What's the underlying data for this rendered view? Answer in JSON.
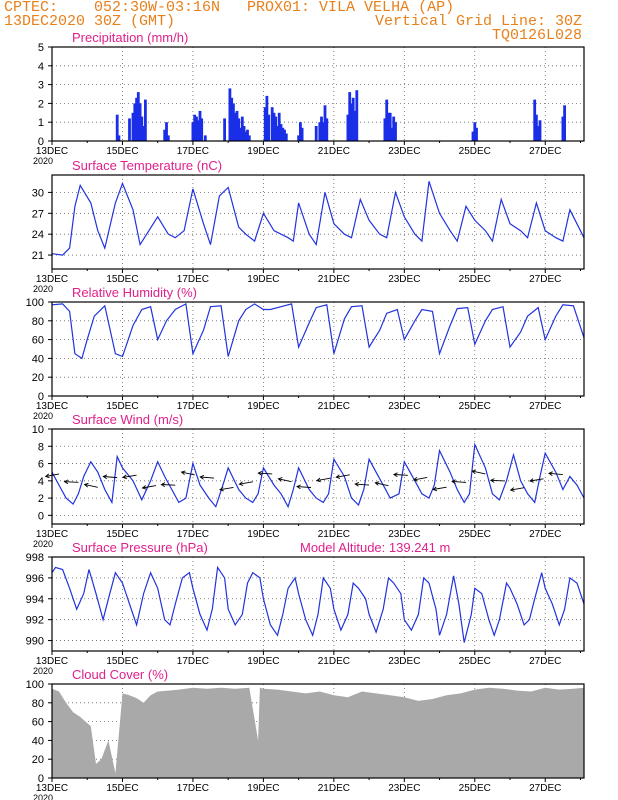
{
  "header": {
    "line1": "CPTEC:    052:30W-03:16N   PROX01: VILA VELHA (AP)",
    "line2_left": "13DEC2020 30Z (GMT)",
    "line2_right": "Vertical Grid Line: 30Z",
    "code": "TQ0126L028"
  },
  "colors": {
    "header": "#e8801c",
    "title": "#e0208c",
    "line": "#2233dd",
    "bar": "#1a2ee8",
    "cloud": "#a9a9a9",
    "arrow": "#000000",
    "grid": "#666666"
  },
  "x_tick_labels": [
    "13DEC",
    "15DEC",
    "17DEC",
    "19DEC",
    "21DEC",
    "23DEC",
    "25DEC",
    "27DEC"
  ],
  "year_label": "2020",
  "chart_data": [
    {
      "type": "bar",
      "title": "Precipitation (mm/h)",
      "x_range_days": [
        13,
        28.1
      ],
      "ylim": [
        0,
        5
      ],
      "yticks": [
        0,
        1,
        2,
        3,
        4,
        5
      ],
      "x": [
        14.85,
        14.9,
        15.2,
        15.3,
        15.35,
        15.4,
        15.45,
        15.5,
        15.55,
        15.6,
        15.65,
        16.2,
        16.25,
        16.3,
        17.0,
        17.05,
        17.1,
        17.15,
        17.2,
        17.25,
        17.35,
        17.9,
        18.05,
        18.1,
        18.15,
        18.2,
        18.25,
        18.3,
        18.35,
        18.4,
        18.45,
        18.5,
        18.55,
        18.6,
        19.05,
        19.1,
        19.15,
        19.25,
        19.3,
        19.35,
        19.4,
        19.45,
        19.5,
        19.55,
        19.6,
        19.65,
        20.0,
        20.05,
        20.1,
        20.5,
        20.6,
        20.65,
        20.7,
        20.75,
        20.8,
        21.4,
        21.45,
        21.5,
        21.55,
        21.6,
        21.65,
        22.45,
        22.5,
        22.55,
        22.6,
        22.65,
        22.7,
        22.75,
        24.95,
        25.0,
        25.05,
        26.7,
        26.75,
        26.8,
        26.85,
        27.5,
        27.55
      ],
      "values": [
        1.4,
        0.3,
        1.2,
        1.5,
        2.0,
        2.3,
        2.6,
        2.0,
        1.3,
        0.8,
        2.2,
        0.6,
        1.0,
        0.3,
        1.0,
        1.4,
        1.3,
        1.1,
        1.6,
        1.2,
        0.3,
        1.2,
        2.8,
        2.3,
        2.0,
        1.5,
        1.6,
        1.2,
        0.7,
        1.3,
        0.8,
        0.5,
        0.6,
        0.3,
        1.8,
        2.4,
        1.4,
        1.8,
        1.5,
        1.3,
        0.8,
        1.5,
        0.9,
        0.7,
        0.6,
        0.4,
        0.3,
        1.0,
        0.7,
        0.8,
        1.0,
        1.3,
        1.0,
        1.9,
        1.2,
        1.4,
        2.6,
        2.0,
        2.3,
        1.6,
        2.7,
        1.2,
        2.2,
        1.5,
        1.5,
        0.7,
        1.3,
        1.0,
        0.5,
        1.0,
        0.7,
        2.2,
        1.4,
        0.8,
        1.1,
        1.3,
        1.9
      ]
    },
    {
      "type": "line",
      "title": "Surface Temperature (nC)",
      "ylim": [
        19,
        32.5
      ],
      "yticks": [
        21,
        24,
        27,
        30
      ],
      "x": [
        13.0,
        13.3,
        13.5,
        13.65,
        13.8,
        14.1,
        14.3,
        14.5,
        14.8,
        15.0,
        15.3,
        15.5,
        15.75,
        16.0,
        16.3,
        16.5,
        16.75,
        17.0,
        17.3,
        17.5,
        17.75,
        18.0,
        18.3,
        18.5,
        18.75,
        19.0,
        19.3,
        19.7,
        19.85,
        20.0,
        20.3,
        20.5,
        20.75,
        21.0,
        21.3,
        21.5,
        21.75,
        22.0,
        22.3,
        22.5,
        22.75,
        23.0,
        23.3,
        23.5,
        23.7,
        24.0,
        24.3,
        24.5,
        24.75,
        25.0,
        25.3,
        25.5,
        25.75,
        26.0,
        26.3,
        26.5,
        26.75,
        27.0,
        27.3,
        27.5,
        27.7,
        28.1
      ],
      "values": [
        21.2,
        21.0,
        22.0,
        28.0,
        31.0,
        28.5,
        24.5,
        22.0,
        28.5,
        31.3,
        27.5,
        22.5,
        24.5,
        26.5,
        24.0,
        23.5,
        24.5,
        30.5,
        25.5,
        22.5,
        29.5,
        30.7,
        25.0,
        24.0,
        23.0,
        27.0,
        24.5,
        23.5,
        23.0,
        28.5,
        24.0,
        22.5,
        30.0,
        25.5,
        24.0,
        23.5,
        29.0,
        26.0,
        24.0,
        23.5,
        30.0,
        26.5,
        24.0,
        23.0,
        31.6,
        27.0,
        24.5,
        23.0,
        28.0,
        26.0,
        24.5,
        23.0,
        29.0,
        25.5,
        24.5,
        23.5,
        28.5,
        24.5,
        23.5,
        23.0,
        27.5,
        23.5
      ]
    },
    {
      "type": "line",
      "title": "Relative Humidity (%)",
      "ylim": [
        0,
        100
      ],
      "yticks": [
        0,
        20,
        40,
        60,
        80,
        100
      ],
      "x": [
        13.0,
        13.3,
        13.5,
        13.65,
        13.85,
        14.0,
        14.2,
        14.5,
        14.8,
        15.0,
        15.3,
        15.55,
        15.8,
        16.0,
        16.25,
        16.5,
        16.8,
        17.0,
        17.3,
        17.5,
        17.8,
        18.0,
        18.3,
        18.5,
        18.75,
        19.0,
        19.2,
        19.5,
        19.8,
        20.0,
        20.3,
        20.5,
        20.8,
        21.0,
        21.3,
        21.5,
        21.8,
        22.0,
        22.3,
        22.5,
        22.8,
        23.0,
        23.3,
        23.5,
        23.8,
        24.0,
        24.3,
        24.5,
        24.8,
        25.0,
        25.3,
        25.5,
        25.8,
        26.0,
        26.3,
        26.5,
        26.8,
        27.0,
        27.3,
        27.5,
        27.8,
        28.1
      ],
      "values": [
        97,
        98,
        90,
        45,
        40,
        60,
        85,
        96,
        45,
        42,
        75,
        92,
        95,
        60,
        80,
        92,
        98,
        45,
        70,
        95,
        96,
        42,
        80,
        92,
        98,
        92,
        92,
        95,
        98,
        52,
        78,
        94,
        97,
        45,
        82,
        95,
        96,
        52,
        70,
        88,
        92,
        60,
        80,
        92,
        90,
        45,
        75,
        93,
        94,
        55,
        80,
        92,
        95,
        52,
        68,
        85,
        94,
        60,
        85,
        97,
        96,
        62
      ]
    },
    {
      "type": "line",
      "title": "Surface Wind (m/s)",
      "ylim": [
        -1,
        10
      ],
      "yticks": [
        0,
        2,
        4,
        6,
        8,
        10
      ],
      "x": [
        13.0,
        13.2,
        13.4,
        13.6,
        13.75,
        13.9,
        14.1,
        14.3,
        14.5,
        14.7,
        14.85,
        15.0,
        15.3,
        15.55,
        15.8,
        16.0,
        16.2,
        16.4,
        16.6,
        16.8,
        17.0,
        17.2,
        17.45,
        17.65,
        17.85,
        18.0,
        18.3,
        18.5,
        18.7,
        18.85,
        19.0,
        19.3,
        19.5,
        19.7,
        19.85,
        20.0,
        20.3,
        20.5,
        20.7,
        20.85,
        21.0,
        21.3,
        21.5,
        21.7,
        21.85,
        22.0,
        22.2,
        22.4,
        22.6,
        22.85,
        23.0,
        23.3,
        23.5,
        23.7,
        23.85,
        24.0,
        24.3,
        24.5,
        24.7,
        24.85,
        25.0,
        25.3,
        25.5,
        25.7,
        25.9,
        26.1,
        26.3,
        26.5,
        26.7,
        26.85,
        27.0,
        27.3,
        27.5,
        27.7,
        27.9,
        28.1
      ],
      "values": [
        5.0,
        3.5,
        2.0,
        1.3,
        2.5,
        4.5,
        6.2,
        5.0,
        3.0,
        1.5,
        6.8,
        5.5,
        4.0,
        1.8,
        4.0,
        6.2,
        4.5,
        3.0,
        1.5,
        2.0,
        6.0,
        3.5,
        2.0,
        1.0,
        3.5,
        5.5,
        3.0,
        2.0,
        1.5,
        2.5,
        5.5,
        3.5,
        2.5,
        1.0,
        3.0,
        5.5,
        3.0,
        2.0,
        1.5,
        2.5,
        6.5,
        4.5,
        2.0,
        1.2,
        3.0,
        6.5,
        5.0,
        3.5,
        2.0,
        2.5,
        6.2,
        4.0,
        2.5,
        2.0,
        3.5,
        7.5,
        5.0,
        3.0,
        1.5,
        2.5,
        8.2,
        5.5,
        2.5,
        1.8,
        4.0,
        7.0,
        4.0,
        2.5,
        1.5,
        4.5,
        7.2,
        5.0,
        3.0,
        4.5,
        3.5,
        2.0
      ]
    },
    {
      "type": "line",
      "title": "Surface Pressure (hPa)",
      "annotation": "Model Altitude: 139.241 m",
      "ylim": [
        989,
        998
      ],
      "yticks": [
        990,
        992,
        994,
        996,
        998
      ],
      "x": [
        13.0,
        13.1,
        13.3,
        13.5,
        13.7,
        13.9,
        14.05,
        14.25,
        14.45,
        14.6,
        14.8,
        15.0,
        15.2,
        15.4,
        15.6,
        15.8,
        16.0,
        16.2,
        16.35,
        16.5,
        16.7,
        16.9,
        17.0,
        17.2,
        17.4,
        17.55,
        17.7,
        17.9,
        18.0,
        18.2,
        18.4,
        18.55,
        18.7,
        18.9,
        19.0,
        19.2,
        19.4,
        19.55,
        19.7,
        19.9,
        20.0,
        20.2,
        20.4,
        20.55,
        20.7,
        20.9,
        21.0,
        21.2,
        21.4,
        21.55,
        21.7,
        21.9,
        22.0,
        22.2,
        22.4,
        22.55,
        22.7,
        22.9,
        23.0,
        23.2,
        23.4,
        23.55,
        23.7,
        23.9,
        24.0,
        24.2,
        24.4,
        24.55,
        24.7,
        24.9,
        25.0,
        25.2,
        25.4,
        25.55,
        25.7,
        25.9,
        26.0,
        26.2,
        26.4,
        26.55,
        26.7,
        26.9,
        27.0,
        27.2,
        27.4,
        27.55,
        27.7,
        27.9,
        28.1
      ],
      "values": [
        996.5,
        997.0,
        996.8,
        995.0,
        993.0,
        994.5,
        996.8,
        994.5,
        992.0,
        994.0,
        996.5,
        995.5,
        993.5,
        991.5,
        994.5,
        996.5,
        995.0,
        992.0,
        991.5,
        993.5,
        996.0,
        996.5,
        995.0,
        992.5,
        991.0,
        993.0,
        997.0,
        996.0,
        993.0,
        991.5,
        992.5,
        995.5,
        996.5,
        996.0,
        994.0,
        991.5,
        990.5,
        992.5,
        995.0,
        996.0,
        994.5,
        992.0,
        990.5,
        992.5,
        996.0,
        995.0,
        993.0,
        991.0,
        992.5,
        995.5,
        995.0,
        994.0,
        992.5,
        990.8,
        993.0,
        996.0,
        995.5,
        994.5,
        992.0,
        991.0,
        992.5,
        996.0,
        995.5,
        993.0,
        990.5,
        992.5,
        996.2,
        993.5,
        989.8,
        992.5,
        995.0,
        994.5,
        992.0,
        990.5,
        992.0,
        995.5,
        995.0,
        993.5,
        991.5,
        992.0,
        994.0,
        996.5,
        995.0,
        993.5,
        991.5,
        993.0,
        996.0,
        995.5,
        993.5
      ]
    },
    {
      "type": "area",
      "title": "Cloud Cover (%)",
      "ylim": [
        0,
        100
      ],
      "yticks": [
        0,
        20,
        40,
        60,
        80,
        100
      ],
      "x": [
        13.0,
        13.2,
        13.4,
        13.6,
        13.8,
        13.95,
        14.1,
        14.25,
        14.4,
        14.6,
        14.8,
        15.0,
        15.2,
        15.4,
        15.6,
        15.8,
        16.0,
        16.3,
        16.6,
        17.0,
        17.4,
        17.8,
        18.2,
        18.6,
        18.85,
        18.9,
        19.0,
        19.4,
        19.8,
        20.2,
        20.6,
        21.0,
        21.4,
        21.8,
        22.2,
        22.6,
        23.0,
        23.4,
        23.8,
        24.2,
        24.6,
        25.0,
        25.4,
        25.8,
        26.2,
        26.6,
        27.0,
        27.4,
        27.8,
        28.1
      ],
      "values": [
        95,
        92,
        80,
        70,
        65,
        60,
        55,
        15,
        20,
        40,
        5,
        90,
        88,
        85,
        80,
        88,
        92,
        93,
        94,
        96,
        95,
        96,
        95,
        96,
        40,
        96,
        95,
        94,
        92,
        90,
        92,
        88,
        86,
        92,
        90,
        88,
        86,
        82,
        84,
        88,
        90,
        94,
        96,
        95,
        93,
        92,
        96,
        94,
        95,
        96
      ]
    }
  ]
}
